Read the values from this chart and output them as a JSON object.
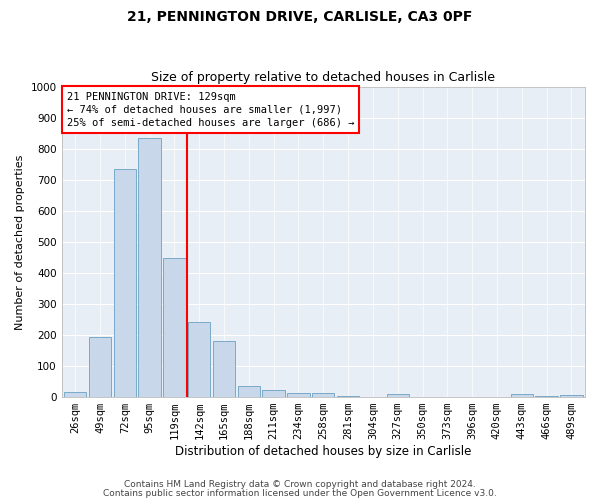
{
  "title1": "21, PENNINGTON DRIVE, CARLISLE, CA3 0PF",
  "title2": "Size of property relative to detached houses in Carlisle",
  "xlabel": "Distribution of detached houses by size in Carlisle",
  "ylabel": "Number of detached properties",
  "categories": [
    "26sqm",
    "49sqm",
    "72sqm",
    "95sqm",
    "119sqm",
    "142sqm",
    "165sqm",
    "188sqm",
    "211sqm",
    "234sqm",
    "258sqm",
    "281sqm",
    "304sqm",
    "327sqm",
    "350sqm",
    "373sqm",
    "396sqm",
    "420sqm",
    "443sqm",
    "466sqm",
    "489sqm"
  ],
  "values": [
    15,
    193,
    735,
    835,
    448,
    242,
    178,
    35,
    20,
    13,
    12,
    3,
    0,
    7,
    0,
    0,
    0,
    0,
    8,
    2,
    5
  ],
  "bar_color": "#c8d8ea",
  "bar_edge_color": "#7aaac8",
  "vline_color": "red",
  "vline_index": 4.5,
  "annotation_text": "21 PENNINGTON DRIVE: 129sqm\n← 74% of detached houses are smaller (1,997)\n25% of semi-detached houses are larger (686) →",
  "annotation_box_color": "white",
  "annotation_box_edge": "red",
  "ylim": [
    0,
    1000
  ],
  "yticks": [
    0,
    100,
    200,
    300,
    400,
    500,
    600,
    700,
    800,
    900,
    1000
  ],
  "footer1": "Contains HM Land Registry data © Crown copyright and database right 2024.",
  "footer2": "Contains public sector information licensed under the Open Government Licence v3.0.",
  "background_color": "#e8eef5",
  "grid_color": "white",
  "title1_fontsize": 10,
  "title2_fontsize": 9,
  "xlabel_fontsize": 8.5,
  "ylabel_fontsize": 8,
  "tick_fontsize": 7.5,
  "footer_fontsize": 6.5,
  "annotation_fontsize": 7.5
}
